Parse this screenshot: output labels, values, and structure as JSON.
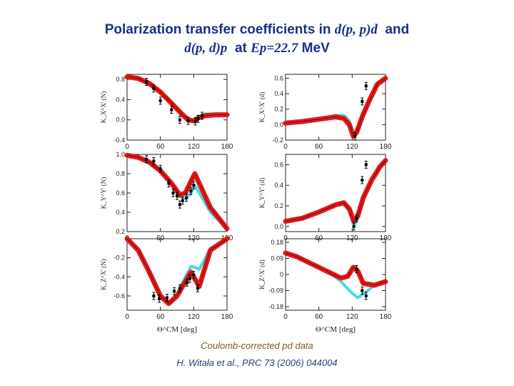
{
  "title": {
    "line1_text": "Polarization transfer coefficients in ",
    "line1_reaction": "d(p, p)d",
    "line1_and": "and",
    "line2_reaction": "d(p, d)p",
    "line2_at": "at",
    "line2_energy": "Ep=22.7",
    "line2_unit": "MeV"
  },
  "caption": {
    "line1": "Coulomb-corrected pd data",
    "line2": "H. Witała et al., PRC 73 (2006) 044004"
  },
  "colors": {
    "band_red": "#e01010",
    "band_cyan": "#40d8e8",
    "title": "#1a2f8c"
  },
  "chart_data": [
    {
      "type": "line",
      "panel": "left-top",
      "ylabel": "K_X^X' (N)",
      "xlim": [
        0,
        180
      ],
      "ylim": [
        -0.4,
        0.9
      ],
      "xticks": [
        "0",
        "60",
        "120",
        "180"
      ],
      "yticks": [
        "-0.4",
        "0.0",
        "0.4",
        "0.8"
      ],
      "series": [
        {
          "values": [
            [
              0,
              0.85
            ],
            [
              20,
              0.82
            ],
            [
              40,
              0.72
            ],
            [
              60,
              0.55
            ],
            [
              80,
              0.33
            ],
            [
              100,
              0.1
            ],
            [
              110,
              0.0
            ],
            [
              120,
              -0.02
            ],
            [
              130,
              0.05
            ],
            [
              140,
              0.08
            ],
            [
              160,
              0.1
            ],
            [
              180,
              0.1
            ]
          ]
        },
        {
          "values": [
            [
              0,
              0.85
            ],
            [
              20,
              0.82
            ],
            [
              40,
              0.72
            ],
            [
              60,
              0.55
            ],
            [
              80,
              0.33
            ],
            [
              100,
              0.1
            ],
            [
              110,
              0.0
            ],
            [
              120,
              -0.02
            ],
            [
              130,
              0.06
            ],
            [
              140,
              0.12
            ],
            [
              160,
              0.12
            ],
            [
              180,
              0.1
            ]
          ]
        }
      ],
      "points": [
        [
          35,
          0.75
        ],
        [
          48,
          0.62
        ],
        [
          60,
          0.38
        ],
        [
          80,
          0.2
        ],
        [
          95,
          0.0
        ],
        [
          110,
          -0.02
        ],
        [
          123,
          -0.03
        ],
        [
          128,
          0.02
        ],
        [
          135,
          0.08
        ]
      ]
    },
    {
      "type": "line",
      "panel": "right-top",
      "ylabel": "K_X^X' (d)",
      "xlim": [
        0,
        180
      ],
      "ylim": [
        -0.2,
        0.65
      ],
      "xticks": [
        "0",
        "60",
        "120",
        "180"
      ],
      "yticks": [
        "-0.2",
        "0.0",
        "0.2",
        "0.4",
        "0.6"
      ],
      "series": [
        {
          "values": [
            [
              0,
              0.02
            ],
            [
              30,
              0.04
            ],
            [
              60,
              0.07
            ],
            [
              90,
              0.1
            ],
            [
              105,
              0.08
            ],
            [
              115,
              0.0
            ],
            [
              122,
              -0.15
            ],
            [
              128,
              -0.1
            ],
            [
              138,
              0.1
            ],
            [
              150,
              0.3
            ],
            [
              165,
              0.52
            ],
            [
              180,
              0.6
            ]
          ]
        },
        {
          "values": [
            [
              0,
              0.02
            ],
            [
              30,
              0.04
            ],
            [
              60,
              0.07
            ],
            [
              90,
              0.12
            ],
            [
              105,
              0.12
            ],
            [
              115,
              0.05
            ],
            [
              122,
              -0.12
            ],
            [
              128,
              -0.08
            ],
            [
              138,
              0.1
            ],
            [
              150,
              0.3
            ],
            [
              165,
              0.52
            ],
            [
              180,
              0.6
            ]
          ]
        }
      ],
      "points": [
        [
          125,
          -0.15
        ],
        [
          138,
          0.3
        ],
        [
          145,
          0.5
        ]
      ]
    },
    {
      "type": "line",
      "panel": "left-middle",
      "ylabel": "K_Y^Y' (N)",
      "xlim": [
        0,
        180
      ],
      "ylim": [
        0.2,
        1.0
      ],
      "xticks": [
        "0",
        "60",
        "120",
        "180"
      ],
      "yticks": [
        "0.2",
        "0.4",
        "0.6",
        "0.8",
        "1.0"
      ],
      "series": [
        {
          "values": [
            [
              0,
              0.99
            ],
            [
              20,
              0.97
            ],
            [
              40,
              0.92
            ],
            [
              60,
              0.83
            ],
            [
              80,
              0.7
            ],
            [
              95,
              0.58
            ],
            [
              105,
              0.6
            ],
            [
              115,
              0.72
            ],
            [
              122,
              0.8
            ],
            [
              130,
              0.7
            ],
            [
              150,
              0.45
            ],
            [
              180,
              0.23
            ]
          ]
        },
        {
          "values": [
            [
              0,
              0.99
            ],
            [
              20,
              0.97
            ],
            [
              40,
              0.92
            ],
            [
              60,
              0.83
            ],
            [
              80,
              0.7
            ],
            [
              95,
              0.56
            ],
            [
              105,
              0.54
            ],
            [
              115,
              0.6
            ],
            [
              122,
              0.68
            ],
            [
              130,
              0.6
            ],
            [
              150,
              0.4
            ],
            [
              180,
              0.23
            ]
          ]
        }
      ],
      "points": [
        [
          35,
          0.95
        ],
        [
          48,
          0.93
        ],
        [
          60,
          0.85
        ],
        [
          75,
          0.7
        ],
        [
          83,
          0.6
        ],
        [
          90,
          0.57
        ],
        [
          95,
          0.48
        ],
        [
          100,
          0.52
        ],
        [
          107,
          0.55
        ],
        [
          115,
          0.62
        ],
        [
          120,
          0.68
        ]
      ]
    },
    {
      "type": "line",
      "panel": "right-middle",
      "ylabel": "K_Y^Y' (d)",
      "xlim": [
        0,
        180
      ],
      "ylim": [
        -0.05,
        0.7
      ],
      "xticks": [
        "0",
        "60",
        "120",
        "180"
      ],
      "yticks": [
        "0.0",
        "0.2",
        "0.4",
        "0.6"
      ],
      "series": [
        {
          "values": [
            [
              0,
              0.05
            ],
            [
              30,
              0.08
            ],
            [
              60,
              0.14
            ],
            [
              90,
              0.21
            ],
            [
              105,
              0.23
            ],
            [
              115,
              0.17
            ],
            [
              123,
              0.05
            ],
            [
              130,
              0.1
            ],
            [
              140,
              0.28
            ],
            [
              155,
              0.45
            ],
            [
              170,
              0.58
            ],
            [
              180,
              0.64
            ]
          ]
        },
        {
          "values": [
            [
              0,
              0.05
            ],
            [
              30,
              0.08
            ],
            [
              60,
              0.14
            ],
            [
              90,
              0.21
            ],
            [
              105,
              0.23
            ],
            [
              115,
              0.16
            ],
            [
              123,
              0.0
            ],
            [
              130,
              0.08
            ],
            [
              140,
              0.26
            ],
            [
              155,
              0.45
            ],
            [
              170,
              0.58
            ],
            [
              180,
              0.64
            ]
          ]
        }
      ],
      "points": [
        [
          123,
          0.0
        ],
        [
          128,
          0.08
        ],
        [
          138,
          0.45
        ],
        [
          145,
          0.6
        ]
      ]
    },
    {
      "type": "line",
      "panel": "left-bottom",
      "ylabel": "K_Z^X' (N)",
      "xlim": [
        0,
        180
      ],
      "ylim": [
        -0.75,
        0.0
      ],
      "xticks": [
        "0",
        "60",
        "120",
        "180"
      ],
      "yticks": [
        "-0.6",
        "-0.4",
        "-0.2"
      ],
      "series": [
        {
          "values": [
            [
              0,
              0.0
            ],
            [
              20,
              -0.12
            ],
            [
              40,
              -0.35
            ],
            [
              60,
              -0.6
            ],
            [
              75,
              -0.68
            ],
            [
              90,
              -0.6
            ],
            [
              105,
              -0.45
            ],
            [
              115,
              -0.35
            ],
            [
              122,
              -0.42
            ],
            [
              130,
              -0.5
            ],
            [
              150,
              -0.12
            ],
            [
              180,
              0.0
            ]
          ]
        },
        {
          "values": [
            [
              0,
              0.0
            ],
            [
              20,
              -0.12
            ],
            [
              40,
              -0.35
            ],
            [
              60,
              -0.6
            ],
            [
              75,
              -0.68
            ],
            [
              90,
              -0.58
            ],
            [
              105,
              -0.4
            ],
            [
              115,
              -0.29
            ],
            [
              122,
              -0.3
            ],
            [
              130,
              -0.32
            ],
            [
              150,
              -0.1
            ],
            [
              180,
              0.0
            ]
          ]
        }
      ],
      "points": [
        [
          48,
          -0.6
        ],
        [
          58,
          -0.63
        ],
        [
          72,
          -0.62
        ],
        [
          85,
          -0.55
        ],
        [
          95,
          -0.52
        ],
        [
          108,
          -0.46
        ],
        [
          113,
          -0.42
        ],
        [
          120,
          -0.38
        ],
        [
          127,
          -0.52
        ]
      ]
    },
    {
      "type": "line",
      "panel": "right-bottom",
      "ylabel": "K_Z^X' (d)",
      "xlim": [
        0,
        180
      ],
      "ylim": [
        -0.2,
        0.2
      ],
      "xticks": [
        "0",
        "60",
        "120",
        "180"
      ],
      "yticks": [
        "-0.18",
        "-0.09",
        "0",
        "0.09",
        "0.18"
      ],
      "series": [
        {
          "values": [
            [
              0,
              0.12
            ],
            [
              20,
              0.1
            ],
            [
              40,
              0.07
            ],
            [
              60,
              0.04
            ],
            [
              80,
              0.01
            ],
            [
              100,
              -0.02
            ],
            [
              112,
              -0.01
            ],
            [
              122,
              0.04
            ],
            [
              130,
              0.02
            ],
            [
              140,
              -0.05
            ],
            [
              160,
              -0.06
            ],
            [
              180,
              -0.04
            ]
          ]
        },
        {
          "values": [
            [
              0,
              0.12
            ],
            [
              20,
              0.1
            ],
            [
              40,
              0.07
            ],
            [
              60,
              0.04
            ],
            [
              80,
              0.01
            ],
            [
              100,
              -0.04
            ],
            [
              112,
              -0.08
            ],
            [
              122,
              -0.11
            ],
            [
              130,
              -0.13
            ],
            [
              140,
              -0.11
            ],
            [
              160,
              -0.06
            ],
            [
              180,
              -0.04
            ]
          ]
        }
      ],
      "points": [
        [
          128,
          0.03
        ],
        [
          138,
          -0.09
        ],
        [
          145,
          -0.12
        ]
      ]
    }
  ],
  "axis": {
    "xlabel_left": "Θ^CM [deg]",
    "xlabel_right": "Θ^CM [deg]"
  }
}
